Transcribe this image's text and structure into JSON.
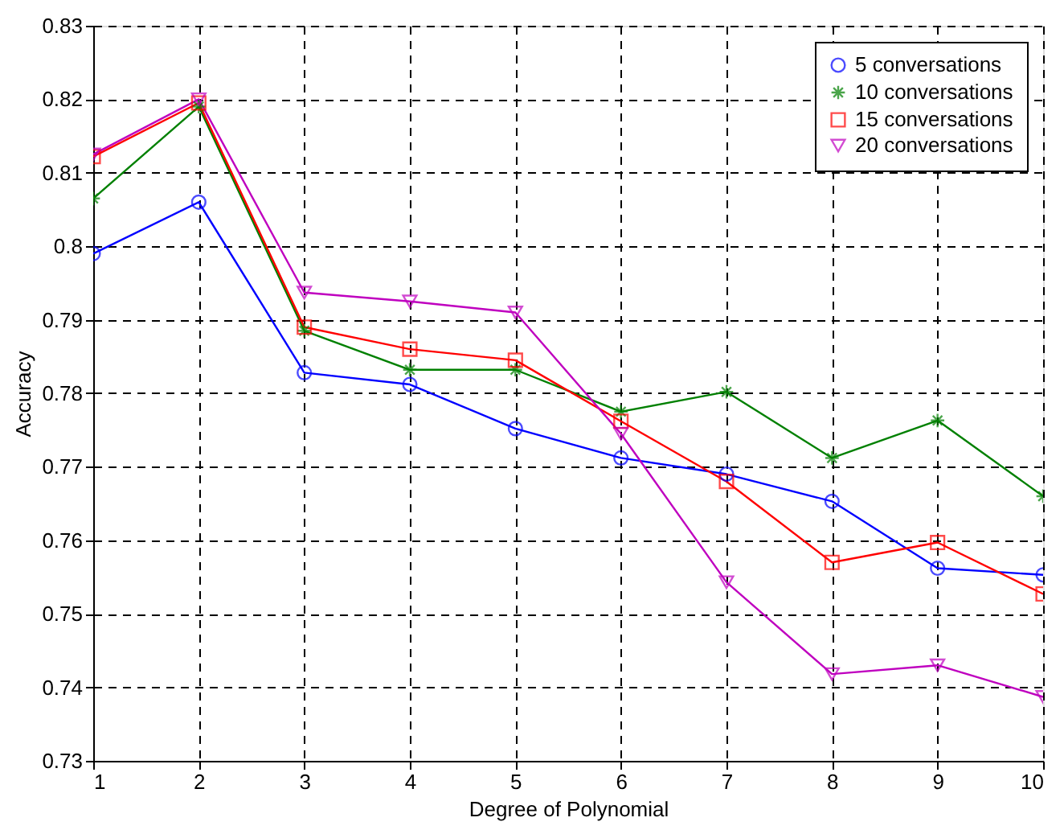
{
  "chart_data": {
    "type": "line",
    "xlabel": "Degree of Polynomial",
    "ylabel": "Accuracy",
    "x": [
      1,
      2,
      3,
      4,
      5,
      6,
      7,
      8,
      9,
      10
    ],
    "series": [
      {
        "name": "5 conversations",
        "color": "#0000ff",
        "marker": "circle",
        "values": [
          0.799,
          0.806,
          0.7828,
          0.7812,
          0.7752,
          0.7712,
          0.769,
          0.7653,
          0.7562,
          0.7553
        ]
      },
      {
        "name": "10 conversations",
        "color": "#008000",
        "marker": "cross",
        "values": [
          0.8065,
          0.819,
          0.7885,
          0.7832,
          0.7832,
          0.7775,
          0.7802,
          0.7712,
          0.7763,
          0.766
        ]
      },
      {
        "name": "15 conversations",
        "color": "#ff0000",
        "marker": "square",
        "values": [
          0.8122,
          0.8195,
          0.789,
          0.786,
          0.7845,
          0.7762,
          0.768,
          0.757,
          0.7597,
          0.7527
        ]
      },
      {
        "name": "20 conversations",
        "color": "#bf00bf",
        "marker": "triangle",
        "values": [
          0.8125,
          0.82,
          0.7937,
          0.7925,
          0.791,
          0.7745,
          0.7543,
          0.7418,
          0.743,
          0.7387
        ]
      }
    ],
    "xlim": [
      1,
      10
    ],
    "xticks": [
      1,
      2,
      3,
      4,
      5,
      6,
      7,
      8,
      9,
      10
    ],
    "ylim": [
      0.73,
      0.83
    ],
    "yticks": [
      0.73,
      0.74,
      0.75,
      0.76,
      0.77,
      0.78,
      0.79,
      0.8,
      0.81,
      0.82,
      0.83
    ],
    "grid": true,
    "legend": "top right",
    "line_style": "solid"
  }
}
